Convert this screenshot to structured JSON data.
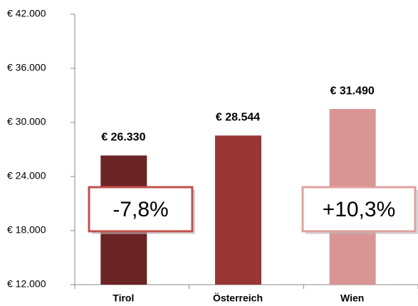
{
  "chart_data": {
    "type": "bar",
    "categories": [
      "Tirol",
      "Österreich",
      "Wien"
    ],
    "values": [
      26330,
      28544,
      31490
    ],
    "value_labels": [
      "€ 26.330",
      "€ 28.544",
      "€ 31.490"
    ],
    "colors": [
      "#6b2424",
      "#993535",
      "#d99594"
    ],
    "ylim": [
      12000,
      42000
    ],
    "yticks": [
      {
        "value": 12000,
        "label": "€ 12.000"
      },
      {
        "value": 18000,
        "label": "€ 18.000"
      },
      {
        "value": 24000,
        "label": "€ 24.000"
      },
      {
        "value": 30000,
        "label": "€ 30.000"
      },
      {
        "value": 36000,
        "label": "€ 36.000"
      },
      {
        "value": 42000,
        "label": "€ 42.000"
      }
    ],
    "grid": false,
    "annotations": [
      {
        "text": "-7,8%",
        "color": "#c0392b"
      },
      {
        "text": "+10,3%",
        "color": "#1f3f7a"
      }
    ]
  }
}
